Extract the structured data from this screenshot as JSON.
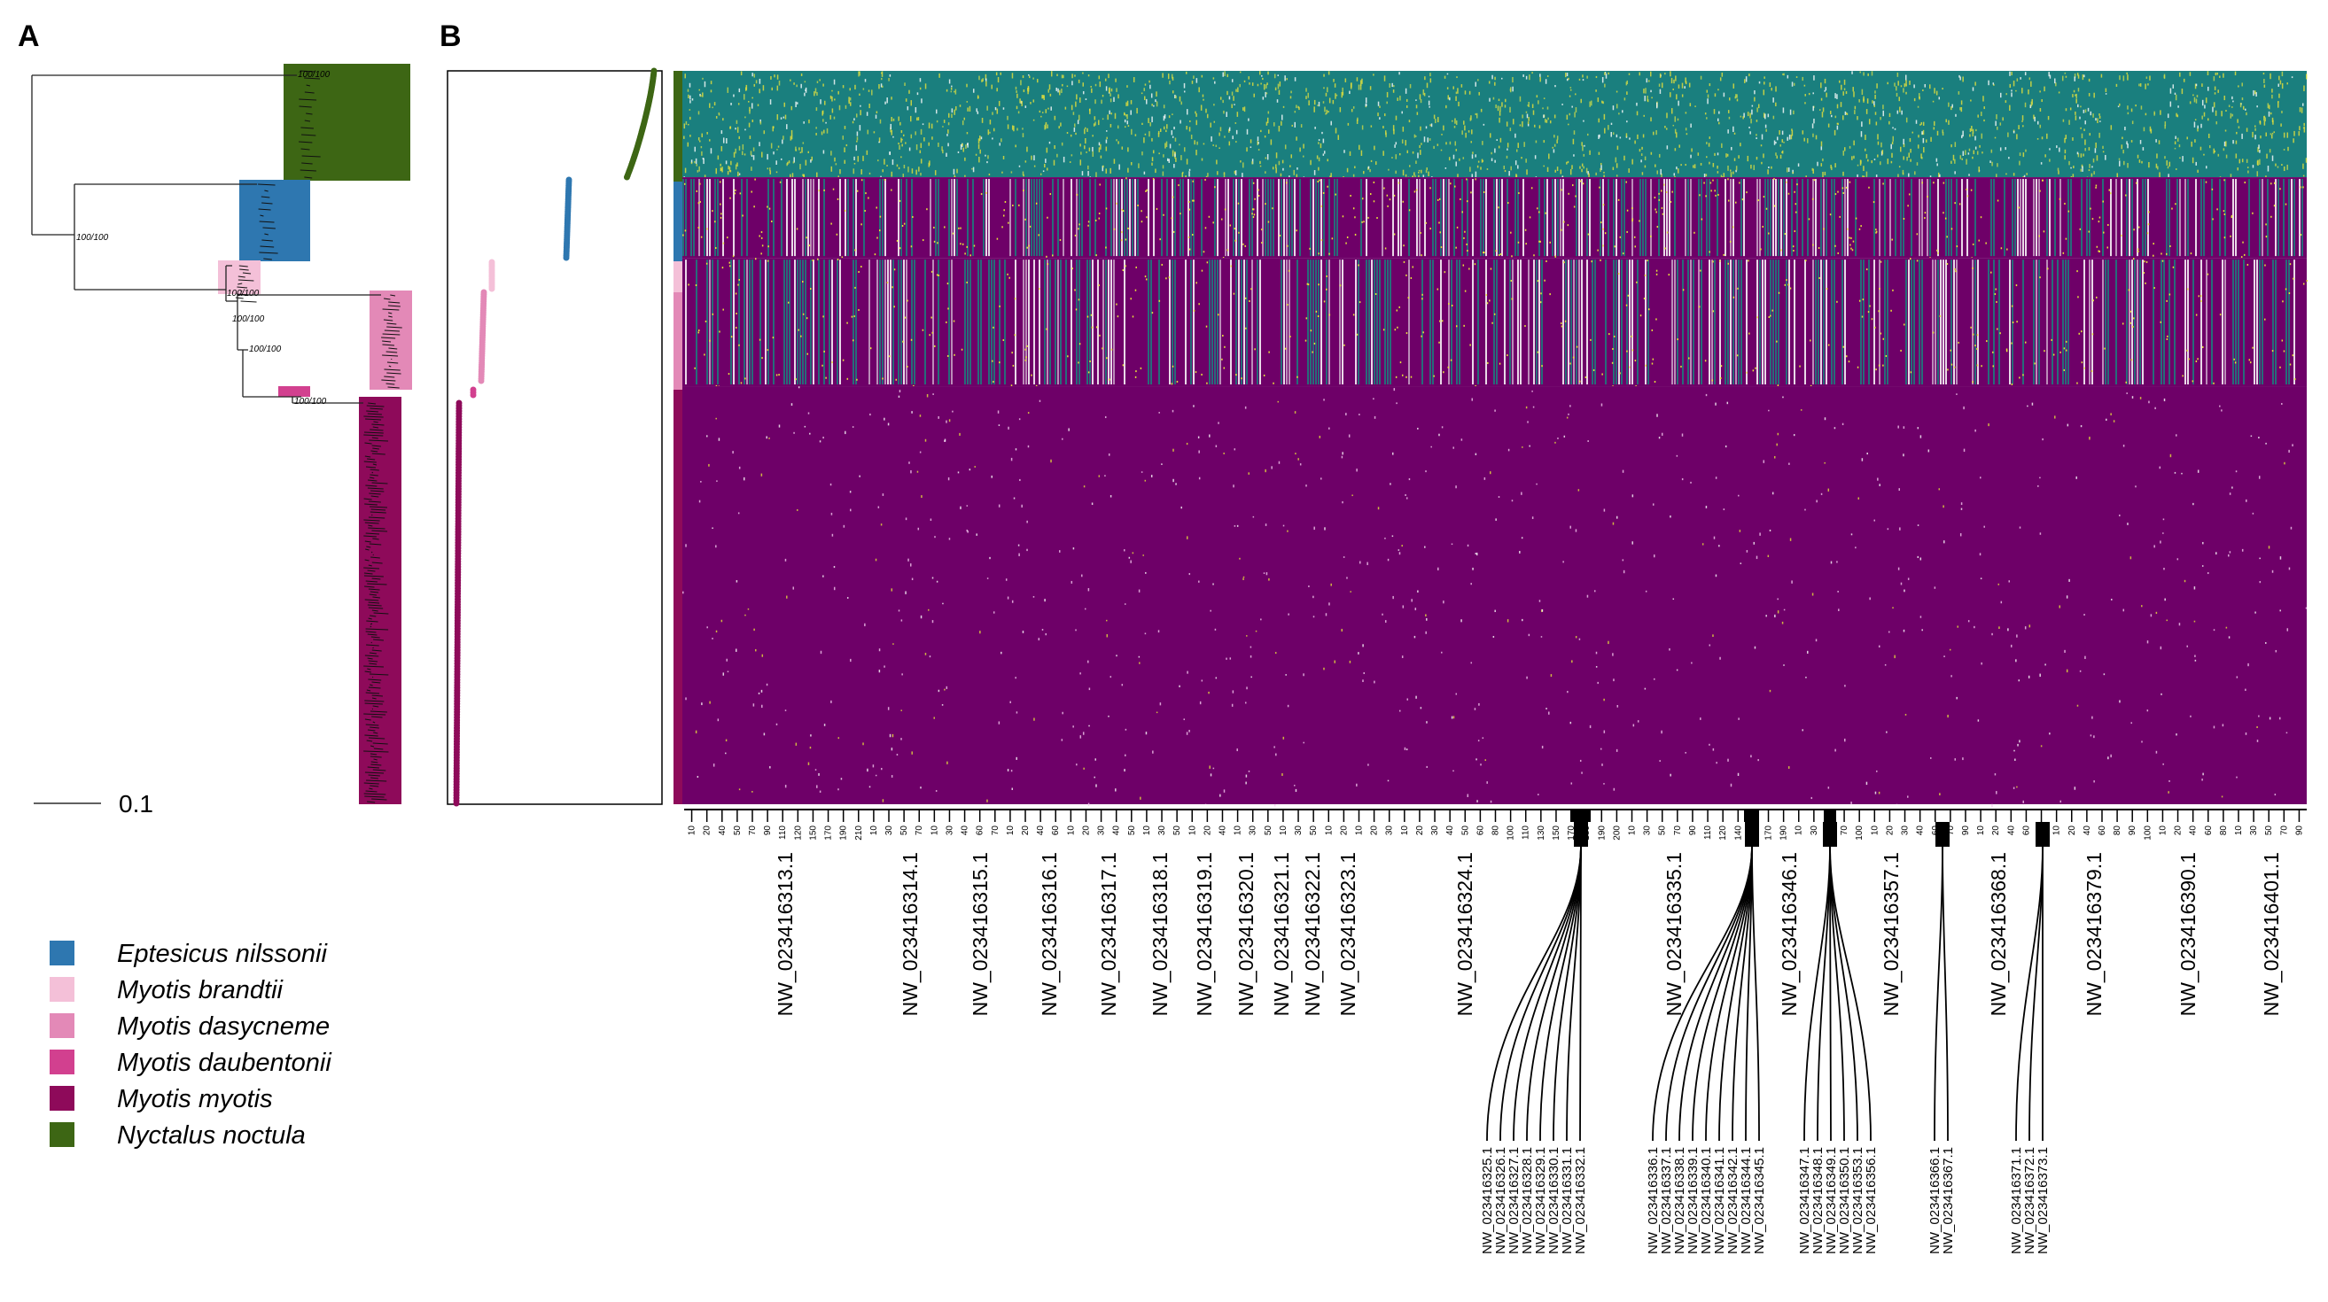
{
  "panels": {
    "a": "A",
    "b": "B"
  },
  "scale_bar": {
    "label": "0.1"
  },
  "support_labels": [
    "100/100",
    "100/100",
    "100/100",
    "100/100",
    "100/100",
    "100/100"
  ],
  "legend": [
    {
      "species": "Eptesicus nilssonii",
      "color": "#2e77b0"
    },
    {
      "species": "Myotis brandtii",
      "color": "#f4c0d8"
    },
    {
      "species": "Myotis dasycneme",
      "color": "#e389b7"
    },
    {
      "species": "Myotis daubentonii",
      "color": "#d2408f"
    },
    {
      "species": "Myotis myotis",
      "color": "#8e0a5a"
    },
    {
      "species": "Nyctalus noctula",
      "color": "#3d6614"
    }
  ],
  "chart_data": {
    "type": "heatmap",
    "title": "",
    "description_rows": "individuals grouped by species (Nyctalus noctula, Eptesicus nilssonii, Myotis brandtii, Myotis dasycneme, Myotis daubentonii, Myotis myotis)",
    "colors": {
      "teal": "#1a7f7e",
      "purple": "#6e0068",
      "yellow": "#e8e23a",
      "white": "#f2e6f0"
    },
    "row_groups": [
      {
        "species": "Nyctalus noctula",
        "row_fraction": 0.145,
        "base": "teal"
      },
      {
        "species": "Eptesicus nilssonii",
        "row_fraction": 0.11,
        "base": "mixed"
      },
      {
        "species": "Myotis dasycneme",
        "row_fraction": 0.175,
        "base": "mixed"
      },
      {
        "species": "Myotis myotis",
        "row_fraction": 0.57,
        "base": "purple"
      }
    ],
    "contigs_main": [
      "NW_023416313.1",
      "NW_023416314.1",
      "NW_023416315.1",
      "NW_023416316.1",
      "NW_023416317.1",
      "NW_023416318.1",
      "NW_023416319.1",
      "NW_023416320.1",
      "NW_023416321.1",
      "NW_023416322.1",
      "NW_023416323.1",
      "NW_023416324.1",
      "NW_023416335.1",
      "NW_023416346.1",
      "NW_023416357.1",
      "NW_023416368.1",
      "NW_023416379.1",
      "NW_023416390.1",
      "NW_023416401.1"
    ],
    "contigs_small_groups": [
      [
        "NW_023416325.1",
        "NW_023416326.1",
        "NW_023416327.1",
        "NW_023416328.1",
        "NW_023416329.1",
        "NW_023416330.1",
        "NW_023416331.1",
        "NW_023416332.1"
      ],
      [
        "NW_023416336.1",
        "NW_023416337.1",
        "NW_023416338.1",
        "NW_023416339.1",
        "NW_023416340.1",
        "NW_023416341.1",
        "NW_023416342.1",
        "NW_023416344.1",
        "NW_023416345.1"
      ],
      [
        "NW_023416347.1",
        "NW_023416348.1",
        "NW_023416349.1",
        "NW_023416350.1",
        "NW_023416353.1",
        "NW_023416356.1"
      ],
      [
        "NW_023416366.1",
        "NW_023416367.1"
      ],
      [
        "NW_023416371.1",
        "NW_023416372.1",
        "NW_023416373.1"
      ]
    ],
    "tick_labels": [
      "10",
      "20",
      "40",
      "50",
      "70",
      "90",
      "110",
      "120",
      "150",
      "170",
      "190",
      "210",
      "10",
      "30",
      "50",
      "70",
      "10",
      "30",
      "40",
      "60",
      "70",
      "10",
      "20",
      "40",
      "60",
      "10",
      "20",
      "30",
      "40",
      "50",
      "10",
      "30",
      "50",
      "10",
      "20",
      "40",
      "10",
      "30",
      "50",
      "10",
      "30",
      "50",
      "10",
      "20",
      "10",
      "20",
      "30",
      "10",
      "20",
      "30",
      "40",
      "50",
      "60",
      "80",
      "100",
      "110",
      "130",
      "150",
      "170",
      "180",
      "190",
      "200",
      "10",
      "30",
      "50",
      "70",
      "90",
      "110",
      "120",
      "140",
      "160",
      "170",
      "190",
      "10",
      "30",
      "50",
      "70",
      "100",
      "10",
      "20",
      "30",
      "40",
      "60",
      "70",
      "90",
      "10",
      "20",
      "40",
      "60",
      "70",
      "10",
      "20",
      "40",
      "60",
      "80",
      "90",
      "100",
      "10",
      "20",
      "40",
      "60",
      "80",
      "10",
      "30",
      "50",
      "70",
      "90"
    ]
  }
}
